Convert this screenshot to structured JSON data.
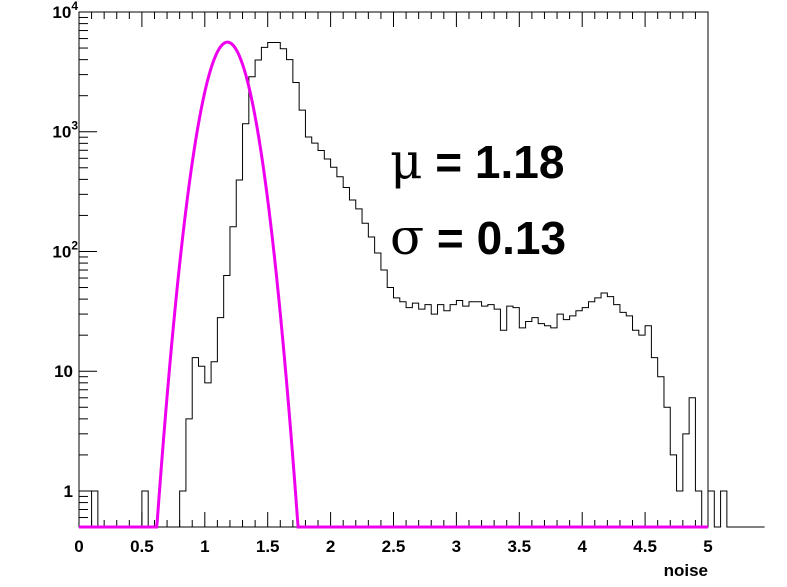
{
  "chart_data": {
    "type": "histogram",
    "title": "",
    "xlabel": "noise",
    "ylabel": "",
    "xlim": [
      0,
      5
    ],
    "ylim": [
      0.5,
      10000
    ],
    "yscale": "log",
    "bin_width": 0.05,
    "x_tick_labels": [
      "0",
      "0.5",
      "1",
      "1.5",
      "2",
      "2.5",
      "3",
      "3.5",
      "4",
      "4.5",
      "5"
    ],
    "x_tick_values": [
      0,
      0.5,
      1,
      1.5,
      2,
      2.5,
      3,
      3.5,
      4,
      4.5,
      5
    ],
    "y_tick_labels": [
      {
        "value": 1,
        "base": "1",
        "exp": ""
      },
      {
        "value": 10,
        "base": "10",
        "exp": ""
      },
      {
        "value": 100,
        "base": "10",
        "exp": "2"
      },
      {
        "value": 1000,
        "base": "10",
        "exp": "3"
      },
      {
        "value": 10000,
        "base": "10",
        "exp": "4"
      }
    ],
    "histogram": {
      "bin_edges_start": 0,
      "counts": [
        0,
        0,
        1,
        0,
        0,
        0,
        0,
        0,
        0,
        0,
        1,
        0,
        0,
        0,
        0,
        0,
        1,
        4,
        13,
        11,
        8,
        12,
        28,
        63,
        161,
        395,
        1165,
        2880,
        3974,
        5060,
        5556,
        5556,
        4931,
        4002,
        2580,
        1515,
        903,
        804,
        697,
        592,
        505,
        421,
        342,
        269,
        227,
        172,
        132,
        97,
        70,
        50,
        41,
        38,
        34,
        37,
        33,
        36,
        30,
        36,
        32,
        36,
        39,
        35,
        38,
        38,
        35,
        36,
        33,
        22,
        35,
        34,
        23,
        26,
        28,
        25,
        24,
        23,
        30,
        27,
        29,
        32,
        34,
        38,
        41,
        45,
        42,
        36,
        31,
        29,
        22,
        20,
        24,
        13,
        9,
        5,
        2,
        1,
        3,
        6,
        1,
        0,
        1,
        0,
        1,
        0,
        0,
        0,
        0,
        0,
        0
      ]
    },
    "fit": {
      "name": "",
      "type": "gaussian",
      "mean": 1.18,
      "sigma": 0.13,
      "peak": 5600,
      "range": [
        0.5,
        1.85
      ],
      "color": "#ee00ee"
    },
    "annotations": {
      "mu_symbol": "μ",
      "mu_text": " = 1.18",
      "sigma_symbol": "σ",
      "sigma_text": " = 0.13"
    },
    "colors": {
      "histogram": "#000000",
      "fit": "#ee00ee",
      "frame": "#000000"
    },
    "grid": false,
    "legend": "none"
  }
}
